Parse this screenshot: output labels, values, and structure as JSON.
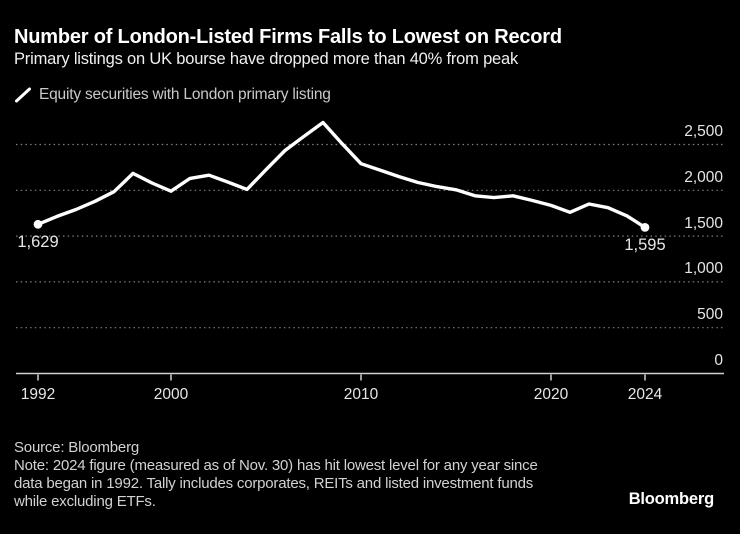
{
  "header": {
    "title": "Number of London-Listed Firms Falls to Lowest on Record",
    "subtitle": "Primary listings on UK bourse have dropped more than 40% from peak"
  },
  "legend": {
    "label": "Equity securities with London primary listing"
  },
  "chart_data": {
    "type": "line",
    "title": "Number of London-Listed Firms Falls to Lowest on Record",
    "subtitle": "Primary listings on UK bourse have dropped more than 40% from peak",
    "grid": "horizontal-dotted",
    "axis_label_side": "right",
    "background": "#000000",
    "line_color": "#ffffff",
    "ylim": [
      0,
      2750
    ],
    "series": [
      {
        "name": "Equity securities with London primary listing",
        "color": "#ffffff",
        "years": [
          1992,
          1993,
          1994,
          1995,
          1996,
          1997,
          1998,
          1999,
          2000,
          2001,
          2002,
          2003,
          2004,
          2005,
          2006,
          2007,
          2008,
          2009,
          2010,
          2011,
          2012,
          2013,
          2014,
          2015,
          2016,
          2017,
          2018,
          2019,
          2020,
          2021,
          2022,
          2023,
          2024
        ],
        "values": [
          1629,
          1715,
          1790,
          1880,
          1985,
          2185,
          2080,
          1990,
          2130,
          2165,
          2090,
          2010,
          2225,
          2435,
          2590,
          2740,
          2510,
          2290,
          2220,
          2150,
          2085,
          2040,
          2005,
          1940,
          1920,
          1940,
          1890,
          1835,
          1760,
          1850,
          1810,
          1720,
          1595
        ]
      }
    ],
    "x_ticks": [
      {
        "label": "1992",
        "year": 1992
      },
      {
        "label": "2000",
        "year": 2000
      },
      {
        "label": "2010",
        "year": 2010
      },
      {
        "label": "2020",
        "year": 2020
      },
      {
        "label": "2024",
        "year": 2024
      }
    ],
    "y_ticks": [
      {
        "label": "0",
        "value": 0
      },
      {
        "label": "500",
        "value": 500
      },
      {
        "label": "1,000",
        "value": 1000
      },
      {
        "label": "1,500",
        "value": 1500
      },
      {
        "label": "2,000",
        "value": 2000
      },
      {
        "label": "2,500",
        "value": 2500
      }
    ],
    "point_labels": {
      "first": "1,629",
      "last": "1,595"
    }
  },
  "footer": {
    "source": "Source: Bloomberg",
    "note": "Note: 2024 figure (measured as of Nov. 30) has hit lowest level for any year since data began in 1992. Tally includes corporates, REITs and listed investment funds while excluding ETFs.",
    "logo": "Bloomberg"
  }
}
